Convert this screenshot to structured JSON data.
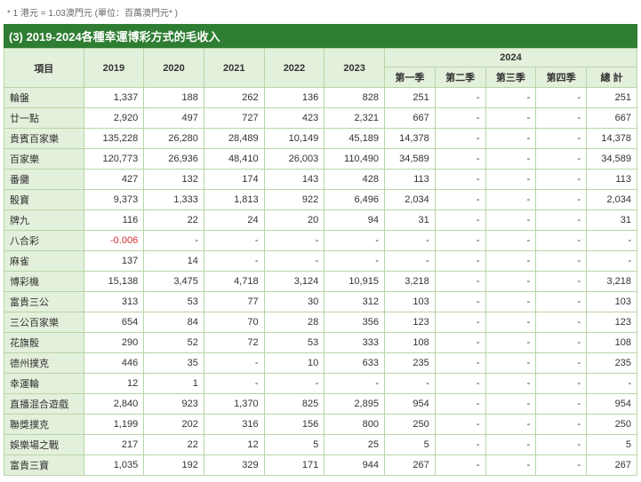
{
  "note": "* 1 港元 = 1.03澳門元 (單位：百萬澳門元* )",
  "title": "(3) 2019-2024各種幸運博彩方式的毛收入",
  "header": {
    "item": "項目",
    "y2019": "2019",
    "y2020": "2020",
    "y2021": "2021",
    "y2022": "2022",
    "y2023": "2023",
    "y2024": "2024",
    "q1": "第一季",
    "q2": "第二季",
    "q3": "第三季",
    "q4": "第四季",
    "total": "總 計"
  },
  "rows": [
    {
      "label": "輪盤",
      "y2019": "1,337",
      "y2020": "188",
      "y2021": "262",
      "y2022": "136",
      "y2023": "828",
      "q1": "251",
      "q2": "-",
      "q3": "-",
      "q4": "-",
      "total": "251"
    },
    {
      "label": "廿一點",
      "y2019": "2,920",
      "y2020": "497",
      "y2021": "727",
      "y2022": "423",
      "y2023": "2,321",
      "q1": "667",
      "q2": "-",
      "q3": "-",
      "q4": "-",
      "total": "667"
    },
    {
      "label": "貴賓百家樂",
      "y2019": "135,228",
      "y2020": "26,280",
      "y2021": "28,489",
      "y2022": "10,149",
      "y2023": "45,189",
      "q1": "14,378",
      "q2": "-",
      "q3": "-",
      "q4": "-",
      "total": "14,378"
    },
    {
      "label": "百家樂",
      "y2019": "120,773",
      "y2020": "26,936",
      "y2021": "48,410",
      "y2022": "26,003",
      "y2023": "110,490",
      "q1": "34,589",
      "q2": "-",
      "q3": "-",
      "q4": "-",
      "total": "34,589"
    },
    {
      "label": "番攤",
      "y2019": "427",
      "y2020": "132",
      "y2021": "174",
      "y2022": "143",
      "y2023": "428",
      "q1": "113",
      "q2": "-",
      "q3": "-",
      "q4": "-",
      "total": "113"
    },
    {
      "label": "骰寶",
      "y2019": "9,373",
      "y2020": "1,333",
      "y2021": "1,813",
      "y2022": "922",
      "y2023": "6,496",
      "q1": "2,034",
      "q2": "-",
      "q3": "-",
      "q4": "-",
      "total": "2,034"
    },
    {
      "label": "牌九",
      "y2019": "116",
      "y2020": "22",
      "y2021": "24",
      "y2022": "20",
      "y2023": "94",
      "q1": "31",
      "q2": "-",
      "q3": "-",
      "q4": "-",
      "total": "31"
    },
    {
      "label": "八合彩",
      "y2019": "-0.006",
      "y2020": "-",
      "y2021": "-",
      "y2022": "-",
      "y2023": "-",
      "q1": "-",
      "q2": "-",
      "q3": "-",
      "q4": "-",
      "total": "-",
      "neg2019": true
    },
    {
      "label": "麻雀",
      "y2019": "137",
      "y2020": "14",
      "y2021": "-",
      "y2022": "-",
      "y2023": "-",
      "q1": "-",
      "q2": "-",
      "q3": "-",
      "q4": "-",
      "total": "-"
    },
    {
      "label": "博彩機",
      "y2019": "15,138",
      "y2020": "3,475",
      "y2021": "4,718",
      "y2022": "3,124",
      "y2023": "10,915",
      "q1": "3,218",
      "q2": "-",
      "q3": "-",
      "q4": "-",
      "total": "3,218"
    },
    {
      "label": "富貴三公",
      "y2019": "313",
      "y2020": "53",
      "y2021": "77",
      "y2022": "30",
      "y2023": "312",
      "q1": "103",
      "q2": "-",
      "q3": "-",
      "q4": "-",
      "total": "103"
    },
    {
      "label": "三公百家樂",
      "y2019": "654",
      "y2020": "84",
      "y2021": "70",
      "y2022": "28",
      "y2023": "356",
      "q1": "123",
      "q2": "-",
      "q3": "-",
      "q4": "-",
      "total": "123"
    },
    {
      "label": "花旗骰",
      "y2019": "290",
      "y2020": "52",
      "y2021": "72",
      "y2022": "53",
      "y2023": "333",
      "q1": "108",
      "q2": "-",
      "q3": "-",
      "q4": "-",
      "total": "108"
    },
    {
      "label": "德州撲克",
      "y2019": "446",
      "y2020": "35",
      "y2021": "-",
      "y2022": "10",
      "y2023": "633",
      "q1": "235",
      "q2": "-",
      "q3": "-",
      "q4": "-",
      "total": "235"
    },
    {
      "label": "幸運輪",
      "y2019": "12",
      "y2020": "1",
      "y2021": "-",
      "y2022": "-",
      "y2023": "-",
      "q1": "-",
      "q2": "-",
      "q3": "-",
      "q4": "-",
      "total": "-"
    },
    {
      "label": "直播混合遊戲",
      "y2019": "2,840",
      "y2020": "923",
      "y2021": "1,370",
      "y2022": "825",
      "y2023": "2,895",
      "q1": "954",
      "q2": "-",
      "q3": "-",
      "q4": "-",
      "total": "954"
    },
    {
      "label": "聯獎撲克",
      "y2019": "1,199",
      "y2020": "202",
      "y2021": "316",
      "y2022": "156",
      "y2023": "800",
      "q1": "250",
      "q2": "-",
      "q3": "-",
      "q4": "-",
      "total": "250"
    },
    {
      "label": "娛樂場之戰",
      "y2019": "217",
      "y2020": "22",
      "y2021": "12",
      "y2022": "5",
      "y2023": "25",
      "q1": "5",
      "q2": "-",
      "q3": "-",
      "q4": "-",
      "total": "5"
    },
    {
      "label": "富貴三寶",
      "y2019": "1,035",
      "y2020": "192",
      "y2021": "329",
      "y2022": "171",
      "y2023": "944",
      "q1": "267",
      "q2": "-",
      "q3": "-",
      "q4": "-",
      "total": "267"
    }
  ],
  "colors": {
    "header_bg": "#e3f0db",
    "title_bg": "#2e7d32",
    "border": "#b7d6a8",
    "neg": "#d32f2f"
  }
}
